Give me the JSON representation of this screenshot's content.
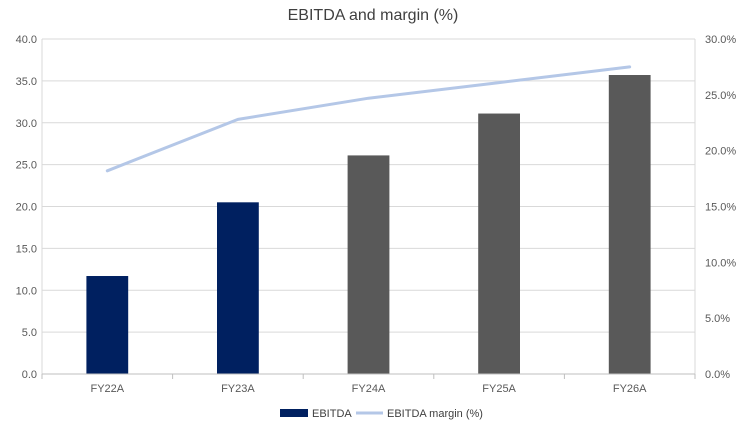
{
  "chart_data": {
    "type": "bar",
    "title": "EBITDA and margin (%)",
    "categories": [
      "FY22A",
      "FY23A",
      "FY24A",
      "FY25A",
      "FY26A"
    ],
    "series": [
      {
        "name": "EBITDA",
        "type": "bar",
        "axis": "left",
        "values": [
          11.7,
          20.5,
          26.1,
          31.1,
          35.7
        ],
        "colors": [
          "#002060",
          "#002060",
          "#595959",
          "#595959",
          "#595959"
        ]
      },
      {
        "name": "EBITDA margin (%)",
        "type": "line",
        "axis": "right",
        "values": [
          18.2,
          22.8,
          24.7,
          26.1,
          27.5
        ],
        "color": "#B4C7E7"
      }
    ],
    "y_left": {
      "min": 0,
      "max": 40,
      "ticks": [
        "0.0",
        "5.0",
        "10.0",
        "15.0",
        "20.0",
        "25.0",
        "30.0",
        "35.0",
        "40.0"
      ]
    },
    "y_right": {
      "min": 0,
      "max": 30,
      "ticks": [
        "0.0%",
        "5.0%",
        "10.0%",
        "15.0%",
        "20.0%",
        "25.0%",
        "30.0%"
      ]
    },
    "grid": true,
    "legend": "bottom"
  }
}
